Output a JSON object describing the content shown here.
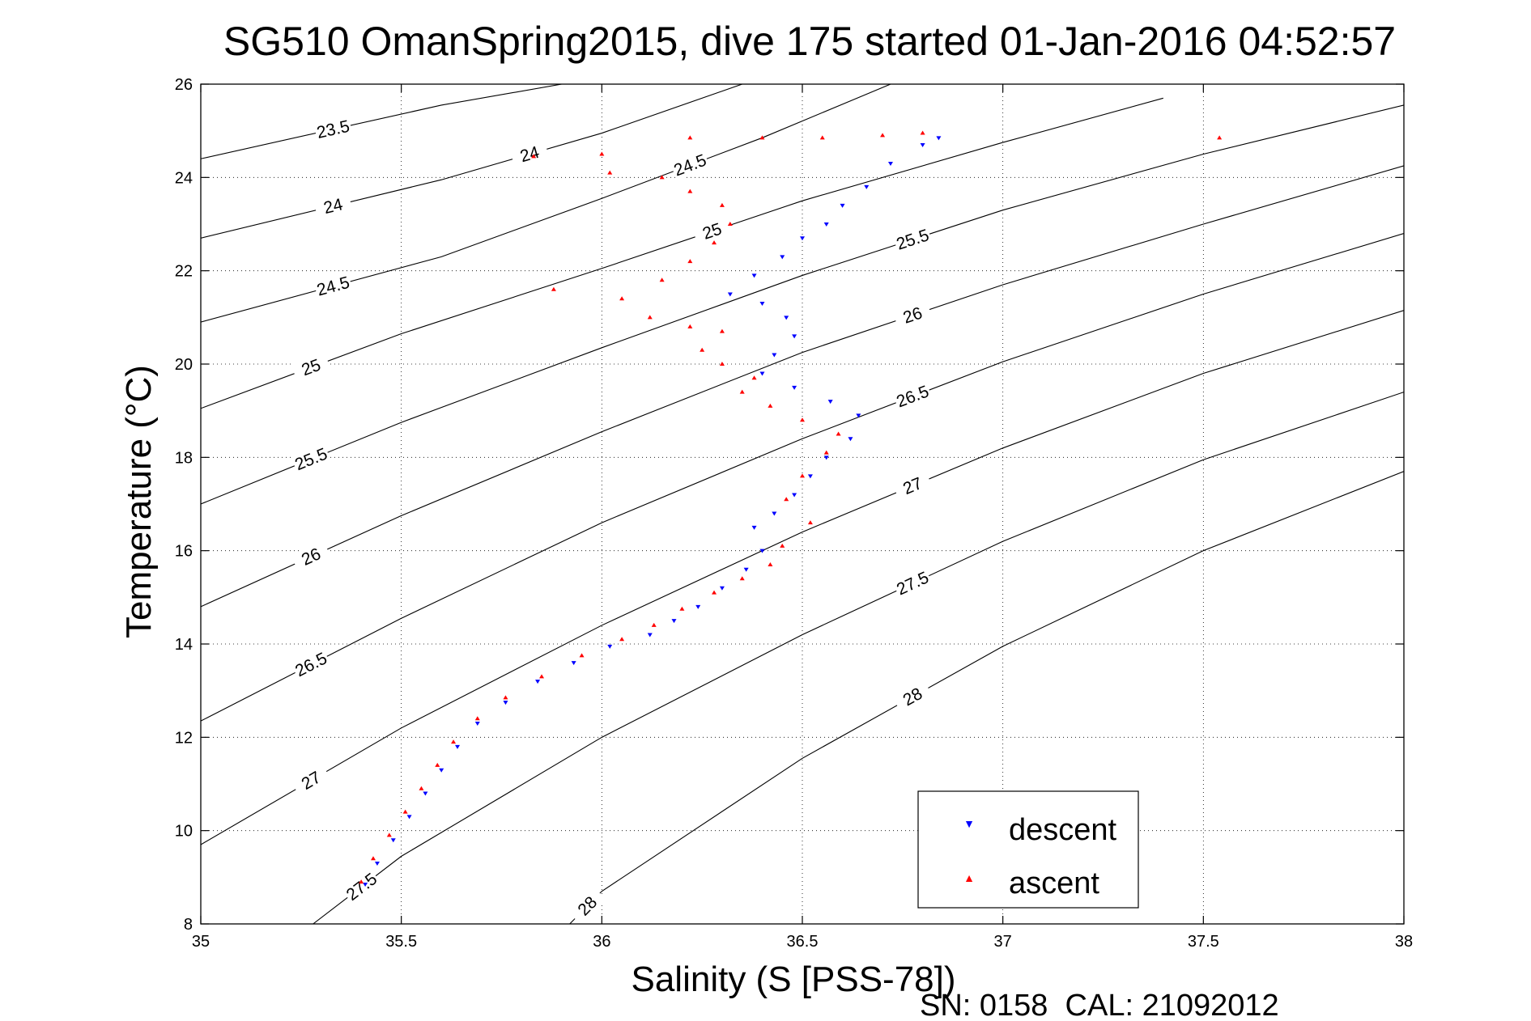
{
  "chart_data": {
    "type": "scatter",
    "title": "SG510 OmanSpring2015, dive 175 started 01-Jan-2016 04:52:57",
    "xlabel": "Salinity (S [PSS-78])",
    "ylabel": "Temperature (°C)",
    "footer": "SN: 0158  CAL: 21092012",
    "xlim": [
      35,
      38
    ],
    "ylim": [
      8,
      26
    ],
    "x_ticks": [
      "35",
      "35.5",
      "36",
      "36.5",
      "37",
      "37.5",
      "38"
    ],
    "y_ticks": [
      "8",
      "10",
      "12",
      "14",
      "16",
      "18",
      "20",
      "22",
      "24",
      "26"
    ],
    "grid": true,
    "legend_position": "bottom-right",
    "series": [
      {
        "name": "descent",
        "marker": "triangle-down",
        "color": "#0000ff",
        "points": [
          [
            35.41,
            8.85
          ],
          [
            35.44,
            9.3
          ],
          [
            35.48,
            9.8
          ],
          [
            35.52,
            10.3
          ],
          [
            35.56,
            10.8
          ],
          [
            35.6,
            11.3
          ],
          [
            35.64,
            11.8
          ],
          [
            35.69,
            12.3
          ],
          [
            35.76,
            12.75
          ],
          [
            35.84,
            13.2
          ],
          [
            35.93,
            13.6
          ],
          [
            36.02,
            13.95
          ],
          [
            36.12,
            14.2
          ],
          [
            36.18,
            14.5
          ],
          [
            36.24,
            14.8
          ],
          [
            36.3,
            15.2
          ],
          [
            36.36,
            15.6
          ],
          [
            36.4,
            16.0
          ],
          [
            36.38,
            16.5
          ],
          [
            36.43,
            16.8
          ],
          [
            36.48,
            17.2
          ],
          [
            36.52,
            17.6
          ],
          [
            36.56,
            18.0
          ],
          [
            36.62,
            18.4
          ],
          [
            36.64,
            18.9
          ],
          [
            36.57,
            19.2
          ],
          [
            36.48,
            19.5
          ],
          [
            36.4,
            19.8
          ],
          [
            36.43,
            20.2
          ],
          [
            36.48,
            20.6
          ],
          [
            36.46,
            21.0
          ],
          [
            36.4,
            21.3
          ],
          [
            36.32,
            21.5
          ],
          [
            36.38,
            21.9
          ],
          [
            36.45,
            22.3
          ],
          [
            36.5,
            22.7
          ],
          [
            36.56,
            23.0
          ],
          [
            36.6,
            23.4
          ],
          [
            36.66,
            23.8
          ],
          [
            36.72,
            24.3
          ],
          [
            36.8,
            24.7
          ],
          [
            36.84,
            24.85
          ]
        ]
      },
      {
        "name": "ascent",
        "marker": "triangle-up",
        "color": "#ff0000",
        "points": [
          [
            35.4,
            8.9
          ],
          [
            35.43,
            9.4
          ],
          [
            35.47,
            9.9
          ],
          [
            35.51,
            10.4
          ],
          [
            35.55,
            10.9
          ],
          [
            35.59,
            11.4
          ],
          [
            35.63,
            11.9
          ],
          [
            35.69,
            12.4
          ],
          [
            35.76,
            12.85
          ],
          [
            35.85,
            13.3
          ],
          [
            35.95,
            13.75
          ],
          [
            36.05,
            14.1
          ],
          [
            36.13,
            14.4
          ],
          [
            36.2,
            14.75
          ],
          [
            36.28,
            15.1
          ],
          [
            36.35,
            15.4
          ],
          [
            36.42,
            15.7
          ],
          [
            36.45,
            16.1
          ],
          [
            36.52,
            16.6
          ],
          [
            36.46,
            17.1
          ],
          [
            36.5,
            17.6
          ],
          [
            36.56,
            18.1
          ],
          [
            36.59,
            18.5
          ],
          [
            36.5,
            18.8
          ],
          [
            36.42,
            19.1
          ],
          [
            36.35,
            19.4
          ],
          [
            36.38,
            19.7
          ],
          [
            36.3,
            20.0
          ],
          [
            36.25,
            20.3
          ],
          [
            36.3,
            20.7
          ],
          [
            36.22,
            20.8
          ],
          [
            36.12,
            21.0
          ],
          [
            36.05,
            21.4
          ],
          [
            36.15,
            21.8
          ],
          [
            36.22,
            22.2
          ],
          [
            36.28,
            22.6
          ],
          [
            36.32,
            23.0
          ],
          [
            36.3,
            23.4
          ],
          [
            36.22,
            23.7
          ],
          [
            36.15,
            24.0
          ],
          [
            36.02,
            24.1
          ],
          [
            36.0,
            24.5
          ],
          [
            35.83,
            24.45
          ],
          [
            35.88,
            21.6
          ],
          [
            36.22,
            24.85
          ],
          [
            36.4,
            24.85
          ],
          [
            36.55,
            24.85
          ],
          [
            36.7,
            24.9
          ],
          [
            36.8,
            24.95
          ],
          [
            37.54,
            24.85
          ]
        ]
      }
    ],
    "density_contours": [
      {
        "label": "23.5",
        "pts": [
          [
            35.0,
            24.4
          ],
          [
            35.6,
            25.55
          ],
          [
            35.9,
            26.0
          ]
        ]
      },
      {
        "label": "24",
        "pts": [
          [
            35.0,
            22.7
          ],
          [
            35.6,
            23.95
          ],
          [
            36.0,
            24.95
          ],
          [
            36.35,
            26.0
          ]
        ]
      },
      {
        "label": "24.5",
        "pts": [
          [
            35.0,
            20.9
          ],
          [
            35.6,
            22.3
          ],
          [
            36.0,
            23.55
          ],
          [
            36.4,
            24.85
          ],
          [
            36.72,
            26.0
          ]
        ]
      },
      {
        "label": "25",
        "pts": [
          [
            35.0,
            19.05
          ],
          [
            35.5,
            20.65
          ],
          [
            36.0,
            22.05
          ],
          [
            36.5,
            23.5
          ],
          [
            37.0,
            24.75
          ],
          [
            37.4,
            25.7
          ]
        ]
      },
      {
        "label": "25.5",
        "pts": [
          [
            35.0,
            17.0
          ],
          [
            35.5,
            18.75
          ],
          [
            36.0,
            20.35
          ],
          [
            36.5,
            21.9
          ],
          [
            37.0,
            23.3
          ],
          [
            37.5,
            24.5
          ],
          [
            38.0,
            25.55
          ]
        ]
      },
      {
        "label": "26",
        "pts": [
          [
            35.0,
            14.8
          ],
          [
            35.5,
            16.75
          ],
          [
            36.0,
            18.55
          ],
          [
            36.5,
            20.25
          ],
          [
            37.0,
            21.7
          ],
          [
            37.5,
            23.0
          ],
          [
            38.0,
            24.25
          ]
        ]
      },
      {
        "label": "26.5",
        "pts": [
          [
            35.0,
            12.35
          ],
          [
            35.5,
            14.55
          ],
          [
            36.0,
            16.6
          ],
          [
            36.5,
            18.4
          ],
          [
            37.0,
            20.05
          ],
          [
            37.5,
            21.5
          ],
          [
            38.0,
            22.8
          ]
        ]
      },
      {
        "label": "27",
        "pts": [
          [
            35.0,
            9.7
          ],
          [
            35.5,
            12.2
          ],
          [
            36.0,
            14.4
          ],
          [
            36.5,
            16.4
          ],
          [
            37.0,
            18.2
          ],
          [
            37.5,
            19.8
          ],
          [
            38.0,
            21.15
          ]
        ]
      },
      {
        "label": "27.5",
        "pts": [
          [
            35.28,
            8.0
          ],
          [
            35.5,
            9.45
          ],
          [
            36.0,
            12.0
          ],
          [
            36.5,
            14.2
          ],
          [
            37.0,
            16.2
          ],
          [
            37.5,
            17.95
          ],
          [
            38.0,
            19.4
          ]
        ]
      },
      {
        "label": "28",
        "pts": [
          [
            35.92,
            8.0
          ],
          [
            36.0,
            8.7
          ],
          [
            36.5,
            11.55
          ],
          [
            37.0,
            13.95
          ],
          [
            37.5,
            16.0
          ],
          [
            38.0,
            17.7
          ]
        ]
      }
    ]
  }
}
